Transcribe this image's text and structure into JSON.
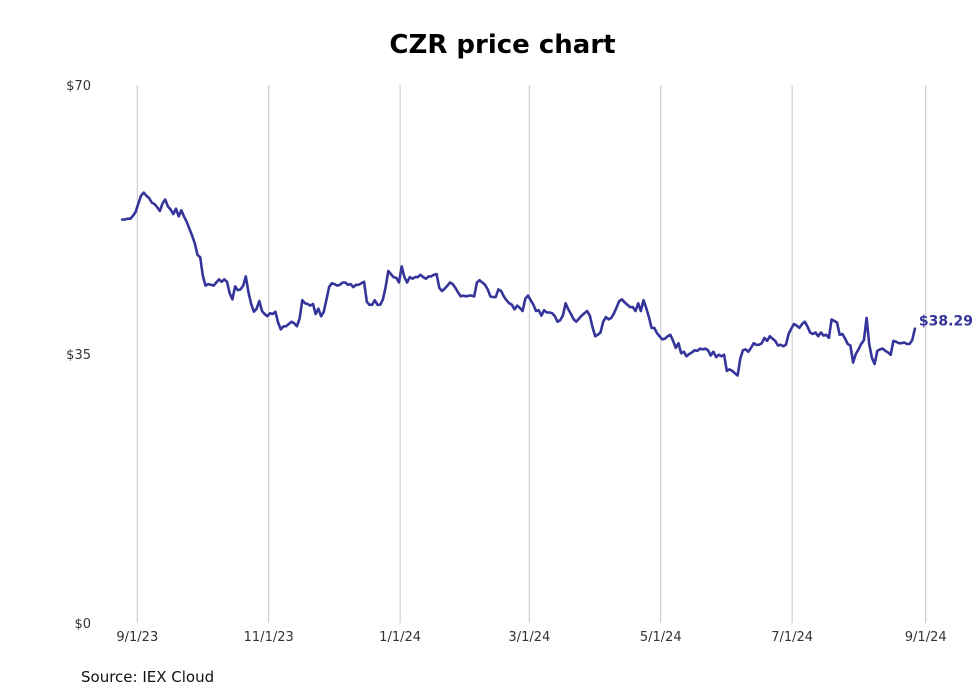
{
  "chart_data": {
    "type": "line",
    "title": "CZR price chart",
    "source": "Source: IEX Cloud",
    "x_start": "2023-08-25",
    "x_end": "2024-08-27",
    "xlim": [
      "2023-08-17",
      "2024-09-03"
    ],
    "ylim": [
      0,
      70
    ],
    "y_ticks": [
      {
        "value": 0,
        "label": "$0"
      },
      {
        "value": 35,
        "label": "$35"
      },
      {
        "value": 70,
        "label": "$70"
      }
    ],
    "x_ticks": [
      {
        "date": "2023-09-01",
        "label": "9/1/23"
      },
      {
        "date": "2023-11-01",
        "label": "11/1/23"
      },
      {
        "date": "2024-01-01",
        "label": "1/1/24"
      },
      {
        "date": "2024-03-01",
        "label": "3/1/24"
      },
      {
        "date": "2024-05-01",
        "label": "5/1/24"
      },
      {
        "date": "2024-07-01",
        "label": "7/1/24"
      },
      {
        "date": "2024-09-01",
        "label": "9/1/24"
      }
    ],
    "grid": {
      "vertical": true,
      "horizontal": false
    },
    "last_value_label": "$38.29",
    "series": [
      {
        "color": "#35349a",
        "values": [
          52.5,
          52.5,
          52.6,
          52.6,
          53.0,
          53.5,
          54.6,
          55.6,
          56.0,
          55.6,
          55.3,
          54.7,
          54.5,
          54.1,
          53.6,
          54.6,
          55.1,
          54.2,
          53.8,
          53.2,
          53.9,
          52.9,
          53.7,
          52.9,
          52.2,
          51.3,
          50.4,
          49.4,
          47.9,
          47.6,
          45.2,
          43.9,
          44.1,
          44.0,
          43.9,
          44.3,
          44.7,
          44.4,
          44.7,
          44.4,
          42.9,
          42.1,
          43.8,
          43.3,
          43.4,
          43.9,
          45.1,
          43.0,
          41.5,
          40.5,
          40.9,
          41.9,
          40.6,
          40.2,
          39.9,
          40.3,
          40.2,
          40.5,
          39.1,
          38.2,
          38.6,
          38.6,
          38.9,
          39.2,
          39.0,
          38.6,
          39.6,
          42.0,
          41.6,
          41.5,
          41.3,
          41.5,
          40.2,
          40.9,
          39.9,
          40.5,
          42.1,
          43.7,
          44.2,
          44.1,
          43.9,
          44.0,
          44.3,
          44.3,
          44.0,
          44.1,
          43.7,
          44.0,
          44.0,
          44.2,
          44.4,
          41.8,
          41.4,
          41.4,
          42.0,
          41.4,
          41.4,
          42.1,
          43.7,
          45.8,
          45.4,
          45.0,
          44.9,
          44.3,
          46.4,
          45.0,
          44.3,
          45.0,
          44.8,
          45.0,
          45.0,
          45.3,
          45.0,
          44.8,
          45.1,
          45.1,
          45.3,
          45.4,
          43.6,
          43.2,
          43.5,
          43.9,
          44.3,
          44.1,
          43.6,
          43.0,
          42.5,
          42.6,
          42.5,
          42.6,
          42.6,
          42.5,
          44.3,
          44.6,
          44.3,
          44.0,
          43.4,
          42.5,
          42.4,
          42.4,
          43.4,
          43.2,
          42.5,
          42.0,
          41.6,
          41.4,
          40.8,
          41.3,
          41.0,
          40.6,
          42.2,
          42.6,
          42.0,
          41.4,
          40.6,
          40.7,
          40.0,
          40.7,
          40.4,
          40.4,
          40.3,
          39.9,
          39.2,
          39.4,
          40.0,
          41.6,
          40.8,
          40.2,
          39.5,
          39.2,
          39.6,
          40.0,
          40.3,
          40.6,
          40.0,
          38.5,
          37.3,
          37.5,
          37.8,
          39.2,
          39.8,
          39.5,
          39.7,
          40.3,
          41.1,
          41.9,
          42.1,
          41.7,
          41.4,
          41.1,
          41.1,
          40.6,
          41.6,
          40.6,
          42.0,
          41.0,
          39.8,
          38.4,
          38.4,
          37.7,
          37.3,
          36.9,
          37.0,
          37.3,
          37.5,
          36.7,
          35.8,
          36.4,
          35.1,
          35.3,
          34.7,
          35.0,
          35.2,
          35.5,
          35.4,
          35.7,
          35.6,
          35.7,
          35.5,
          34.8,
          35.3,
          34.6,
          34.9,
          34.7,
          34.9,
          32.8,
          33.0,
          32.8,
          32.5,
          32.2,
          34.4,
          35.5,
          35.6,
          35.3,
          35.8,
          36.4,
          36.2,
          36.2,
          36.4,
          37.1,
          36.7,
          37.3,
          37.0,
          36.7,
          36.1,
          36.2,
          36.0,
          36.2,
          37.6,
          38.3,
          38.9,
          38.7,
          38.4,
          38.9,
          39.2,
          38.6,
          37.8,
          37.6,
          37.8,
          37.3,
          37.8,
          37.4,
          37.5,
          37.1,
          39.5,
          39.3,
          39.1,
          37.5,
          37.6,
          37.0,
          36.3,
          36.1,
          33.9,
          35.0,
          35.6,
          36.3,
          36.8,
          39.7,
          36.3,
          34.5,
          33.7,
          35.4,
          35.6,
          35.7,
          35.4,
          35.2,
          34.9,
          36.7,
          36.6,
          36.4,
          36.4,
          36.5,
          36.3,
          36.3,
          36.8,
          38.29
        ]
      }
    ]
  }
}
